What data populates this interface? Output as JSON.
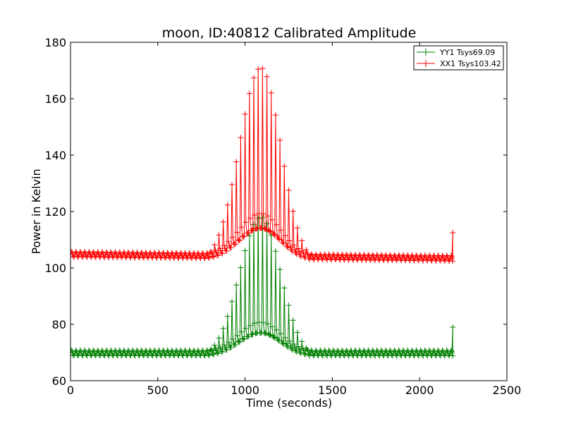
{
  "chart_data": {
    "type": "line",
    "title": "moon, ID:40812 Calibrated Amplitude",
    "xlabel": "Time (seconds)",
    "ylabel": "Power in Kelvin",
    "xlim": [
      0,
      2500
    ],
    "ylim": [
      60,
      180
    ],
    "xticks": [
      0,
      500,
      1000,
      1500,
      2000,
      2500
    ],
    "yticks": [
      60,
      80,
      100,
      120,
      140,
      160,
      180
    ],
    "grid": false,
    "legend_position": "top-right",
    "colors": {
      "series_yy": "#008000",
      "series_xx": "#ff0000",
      "axes": "#000000",
      "background": "#ffffff"
    },
    "marker": "plus",
    "series": [
      {
        "name": "YY1 Tsys69.09",
        "color": "#008000",
        "baseline": 69.8,
        "baseline_ripple": 1.0,
        "peak_time": 1090,
        "peak_max": 118,
        "peak_start": 780,
        "peak_end": 1380,
        "final_point": {
          "x": 2190,
          "y": 79
        }
      },
      {
        "name": "XX1 Tsys103.42",
        "color": "#ff0000",
        "baseline_start": 104.8,
        "baseline_end": 103.4,
        "baseline_ripple": 1.0,
        "peak_time": 1090,
        "peak_max": 171,
        "peak_start": 780,
        "peak_end": 1380,
        "final_point": {
          "x": 2190,
          "y": 112.5
        }
      }
    ],
    "time_range": [
      0,
      2190
    ],
    "sample_interval": 5,
    "scan_period": 25
  }
}
